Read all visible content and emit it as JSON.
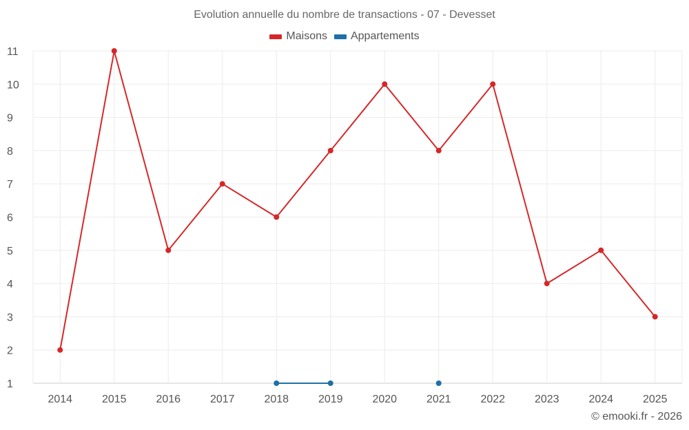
{
  "chart_data": {
    "type": "line",
    "title": "Evolution annuelle du nombre de transactions - 07 - Devesset",
    "x": [
      "2014",
      "2015",
      "2016",
      "2017",
      "2018",
      "2019",
      "2020",
      "2021",
      "2022",
      "2023",
      "2024",
      "2025"
    ],
    "series": [
      {
        "name": "Maisons",
        "color": "#d62728",
        "values": [
          2,
          11,
          5,
          7,
          6,
          8,
          10,
          8,
          10,
          4,
          5,
          3
        ]
      },
      {
        "name": "Appartements",
        "color": "#1f6fa8",
        "values": [
          null,
          null,
          null,
          null,
          1,
          1,
          null,
          1,
          null,
          null,
          null,
          null
        ]
      }
    ],
    "yticks": [
      1,
      2,
      3,
      4,
      5,
      6,
      7,
      8,
      9,
      10,
      11
    ],
    "ylim": [
      1,
      11
    ],
    "grid": true,
    "legend": "top-center"
  },
  "credit": "© emooki.fr - 2026"
}
